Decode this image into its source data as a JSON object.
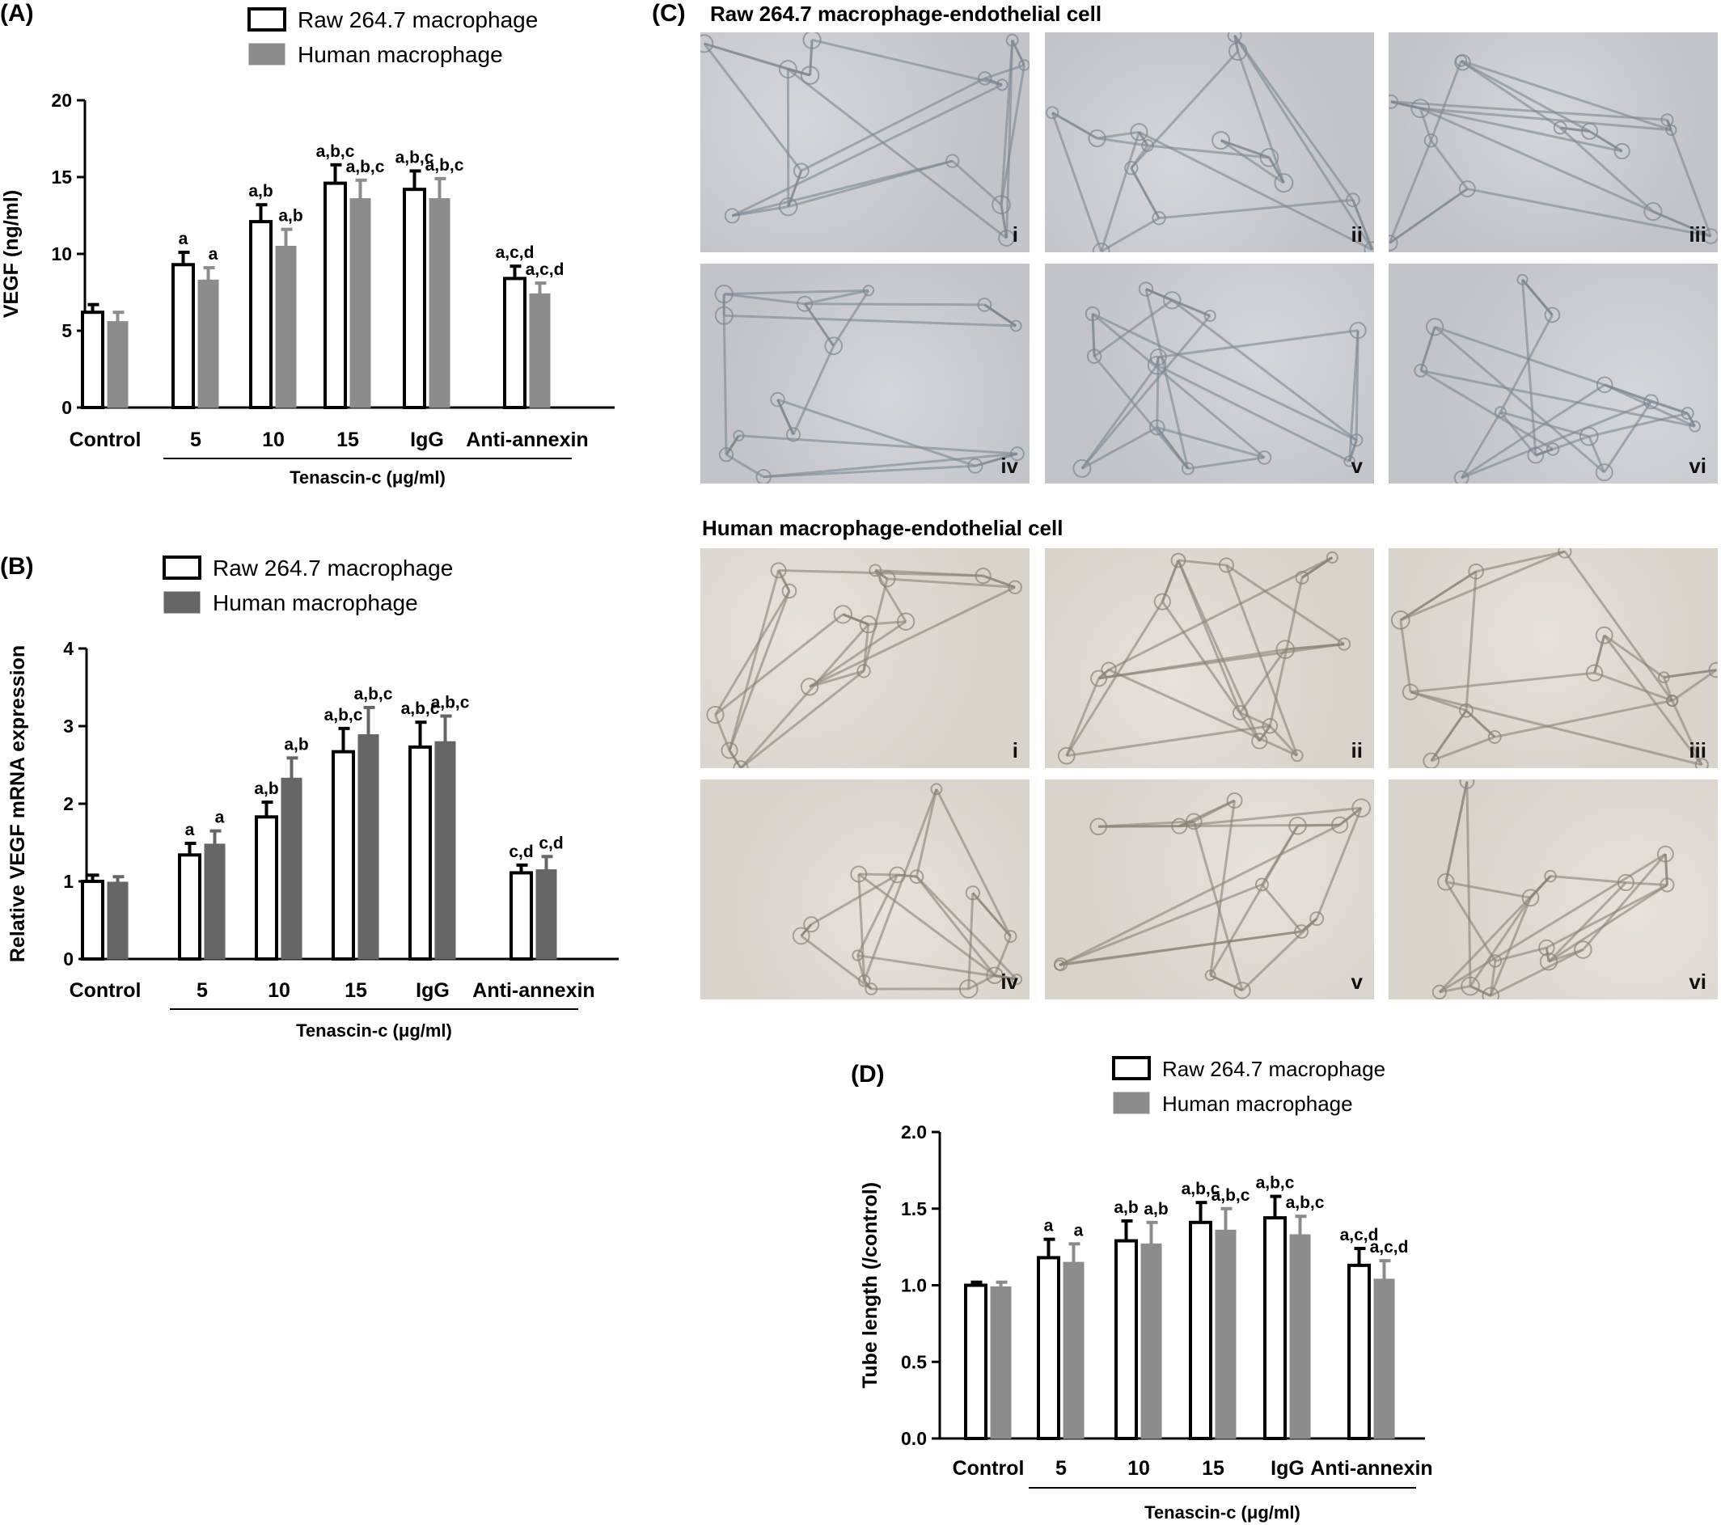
{
  "colors": {
    "white_bar": "#ffffff",
    "gray_bar": "#8c8c8c",
    "dark_bar": "#666666",
    "stroke": "#000000"
  },
  "panels": {
    "A": {
      "label": "(A)"
    },
    "B": {
      "label": "(B)"
    },
    "C": {
      "label": "(C)",
      "raw_title": "Raw 264.7 macrophage-endothelial cell",
      "human_title": "Human macrophage-endothelial cell",
      "image_labels": [
        "i",
        "ii",
        "iii",
        "iv",
        "v",
        "vi"
      ]
    },
    "D": {
      "label": "(D)"
    }
  },
  "chart_data": [
    {
      "id": "A",
      "type": "bar",
      "ylabel": "VEGF (ng/ml)",
      "xlabel": "Tenascin-c (μg/ml)",
      "categories": [
        "Control",
        "5",
        "10",
        "15",
        "IgG",
        "Anti-annexin"
      ],
      "ylim": [
        0,
        20
      ],
      "yticks": [
        0,
        5,
        10,
        15,
        20
      ],
      "tick_labels": [
        "0",
        "5",
        "10",
        "15",
        "20"
      ],
      "bracket_range": [
        1,
        5
      ],
      "legend": {
        "position": "top",
        "entries": [
          "Raw 264.7 macrophage",
          "Human macrophage"
        ]
      },
      "series": [
        {
          "name": "Raw 264.7 macrophage",
          "values": [
            6.2,
            9.3,
            12.1,
            14.6,
            14.2,
            8.4
          ],
          "errors": [
            0.5,
            0.8,
            1.1,
            1.2,
            1.2,
            0.8
          ],
          "annotations": [
            "",
            "a",
            "a,b",
            "a,b,c",
            "a,b,c",
            "a,c,d"
          ]
        },
        {
          "name": "Human macrophage",
          "values": [
            5.6,
            8.3,
            10.5,
            13.6,
            13.6,
            7.4
          ],
          "errors": [
            0.6,
            0.8,
            1.1,
            1.2,
            1.3,
            0.7
          ],
          "annotations": [
            "",
            "a",
            "a,b",
            "a,b,c",
            "a,b,c",
            "a,c,d"
          ]
        }
      ]
    },
    {
      "id": "B",
      "type": "bar",
      "ylabel": "Relative VEGF mRNA expression",
      "xlabel": "Tenascin-c (μg/ml)",
      "categories": [
        "Control",
        "5",
        "10",
        "15",
        "IgG",
        "Anti-annexin"
      ],
      "ylim": [
        0,
        4
      ],
      "yticks": [
        0,
        1,
        2,
        3,
        4
      ],
      "tick_labels": [
        "0",
        "1",
        "2",
        "3",
        "4"
      ],
      "bracket_range": [
        1,
        5
      ],
      "legend": {
        "position": "top",
        "entries": [
          "Raw 264.7 macrophage",
          "Human macrophage"
        ]
      },
      "series": [
        {
          "name": "Raw 264.7 macrophage",
          "values": [
            1.0,
            1.34,
            1.83,
            2.67,
            2.73,
            1.11
          ],
          "errors": [
            0.08,
            0.15,
            0.19,
            0.3,
            0.32,
            0.1
          ],
          "annotations": [
            "",
            "a",
            "a,b",
            "a,b,c",
            "a,b,c",
            "c,d"
          ]
        },
        {
          "name": "Human macrophage",
          "values": [
            0.99,
            1.48,
            2.33,
            2.89,
            2.8,
            1.15
          ],
          "errors": [
            0.07,
            0.17,
            0.26,
            0.35,
            0.33,
            0.17
          ],
          "annotations": [
            "",
            "a",
            "a,b",
            "a,b,c",
            "a,b,c",
            "c,d"
          ]
        }
      ]
    },
    {
      "id": "D",
      "type": "bar",
      "ylabel": "Tube length (/control)",
      "xlabel": "Tenascin-c (μg/ml)",
      "categories": [
        "Control",
        "5",
        "10",
        "15",
        "IgG",
        "Anti-annexin"
      ],
      "ylim": [
        0,
        2
      ],
      "yticks": [
        0,
        0.5,
        1,
        1.5,
        2
      ],
      "tick_labels": [
        "0.0",
        "0.5",
        "1.0",
        "1.5",
        "2.0"
      ],
      "bracket_range": [
        1,
        5
      ],
      "legend": {
        "position": "top",
        "entries": [
          "Raw 264.7 macrophage",
          "Human macrophage"
        ]
      },
      "series": [
        {
          "name": "Raw 264.7 macrophage",
          "values": [
            1.0,
            1.18,
            1.29,
            1.41,
            1.44,
            1.13
          ],
          "errors": [
            0.02,
            0.12,
            0.13,
            0.13,
            0.14,
            0.11
          ],
          "annotations": [
            "",
            "a",
            "a,b",
            "a,b,c",
            "a,b,c",
            "a,c,d"
          ]
        },
        {
          "name": "Human macrophage",
          "values": [
            0.99,
            1.15,
            1.27,
            1.36,
            1.33,
            1.04
          ],
          "errors": [
            0.03,
            0.12,
            0.14,
            0.14,
            0.12,
            0.12
          ],
          "annotations": [
            "",
            "a",
            "a,b",
            "a,b,c",
            "a,b,c",
            "a,c,d"
          ]
        }
      ]
    }
  ]
}
